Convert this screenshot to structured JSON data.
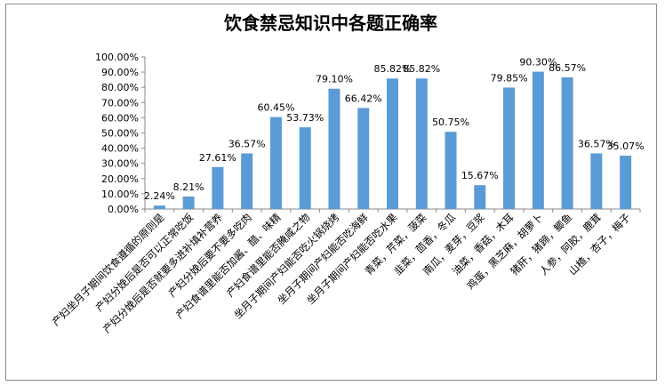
{
  "chart_data": {
    "type": "bar",
    "title": "饮食禁忌知识中各题正确率",
    "xlabel": "",
    "ylabel": "",
    "ylim": [
      0,
      100
    ],
    "y_ticks": [
      "0.00%",
      "10.00%",
      "20.00%",
      "30.00%",
      "40.00%",
      "50.00%",
      "60.00%",
      "70.00%",
      "80.00%",
      "90.00%",
      "100.00%"
    ],
    "grid": false,
    "legend": "none",
    "bar_color": "#5b9bd5",
    "categories": [
      "产妇坐月子期间饮食遵循的原则是",
      "产妇分娩后是否可以正常吃饭",
      "产妇分娩后是否就要多进补填补营养",
      "产妇分娩后要不要多吃肉",
      "产妇食谱里能否加酱、醋、味精",
      "产妇食谱里能否腌咸之物",
      "坐月子期间产妇能否吃火锅烧烤",
      "坐月子期间产妇能否吃海鲜",
      "坐月子期间产妇能否吃水果",
      "青菜，芹菜，菠菜",
      "韭菜，茴香，冬瓜",
      "南瓜，麦芽，豆浆",
      "油菜，香菇，木耳",
      "鸡蛋，黑芝麻，胡萝卜",
      "猪肝，猪蹄，鲫鱼",
      "人参，阿胶，鹿茸",
      "山楂，杏子，梅子"
    ],
    "values": [
      2.24,
      8.21,
      27.61,
      36.57,
      60.45,
      53.73,
      79.1,
      66.42,
      85.82,
      85.82,
      50.75,
      15.67,
      79.85,
      90.3,
      86.57,
      36.57,
      35.07
    ],
    "data_labels": [
      "2.24%",
      "8.21%",
      "27.61%",
      "36.57%",
      "60.45%",
      "53.73%",
      "79.10%",
      "66.42%",
      "85.82%",
      "85.82%",
      "50.75%",
      "15.67%",
      "79.85%",
      "90.30%",
      "86.57%",
      "36.57%",
      "35.07%"
    ]
  }
}
